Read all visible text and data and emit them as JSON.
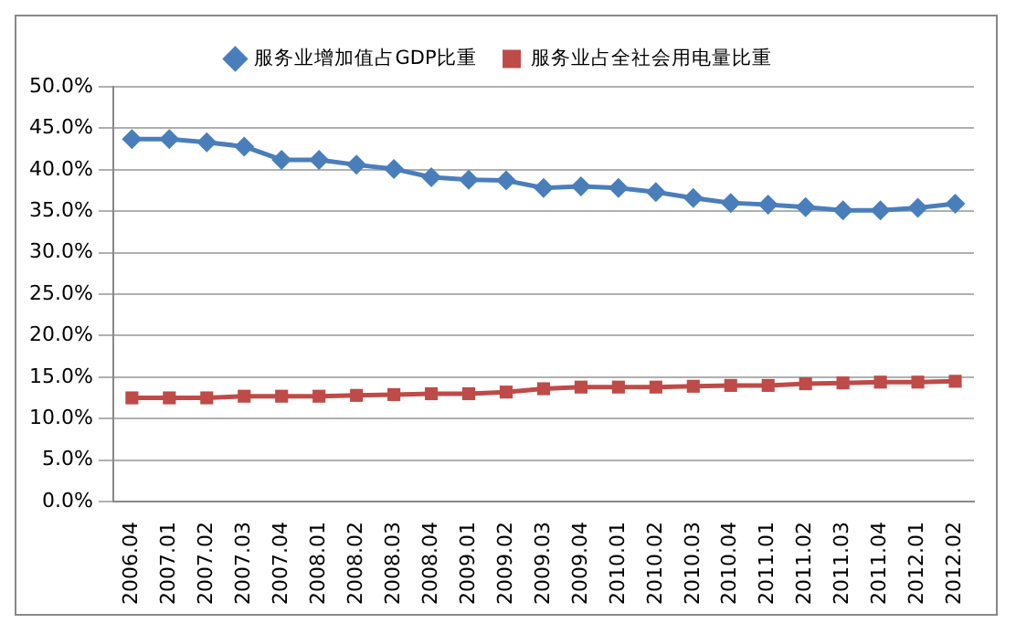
{
  "chart_data": {
    "type": "line",
    "categories": [
      "2006.04",
      "2007.01",
      "2007.02",
      "2007.03",
      "2007.04",
      "2008.01",
      "2008.02",
      "2008.03",
      "2008.04",
      "2009.01",
      "2009.02",
      "2009.03",
      "2009.04",
      "2010.01",
      "2010.02",
      "2010.03",
      "2010.04",
      "2011.01",
      "2011.02",
      "2011.03",
      "2011.04",
      "2012.01",
      "2012.02"
    ],
    "series": [
      {
        "name": "服务业增加值占GDP比重",
        "color": "#4a7ebb",
        "marker": "diamond",
        "values": [
          43.7,
          43.7,
          43.3,
          42.8,
          41.2,
          41.2,
          40.6,
          40.1,
          39.1,
          38.8,
          38.7,
          37.8,
          38.0,
          37.8,
          37.3,
          36.6,
          36.0,
          35.8,
          35.5,
          35.1,
          35.1,
          35.4,
          35.9
        ]
      },
      {
        "name": "服务业占全社会用电量比重",
        "color": "#be4b48",
        "marker": "square",
        "values": [
          12.5,
          12.5,
          12.5,
          12.7,
          12.7,
          12.7,
          12.8,
          12.9,
          13.0,
          13.0,
          13.2,
          13.6,
          13.8,
          13.8,
          13.8,
          13.9,
          14.0,
          14.0,
          14.2,
          14.3,
          14.4,
          14.4,
          14.5
        ]
      }
    ],
    "ylim": [
      0,
      50
    ],
    "yticks": [
      {
        "value": 0,
        "label": "0.0%"
      },
      {
        "value": 5,
        "label": "5.0%"
      },
      {
        "value": 10,
        "label": "10.0%"
      },
      {
        "value": 15,
        "label": "15.0%"
      },
      {
        "value": 20,
        "label": "20.0%"
      },
      {
        "value": 25,
        "label": "25.0%"
      },
      {
        "value": 30,
        "label": "30.0%"
      },
      {
        "value": 35,
        "label": "35.0%"
      },
      {
        "value": 40,
        "label": "40.0%"
      },
      {
        "value": 45,
        "label": "45.0%"
      },
      {
        "value": 50,
        "label": "50.0%"
      }
    ],
    "grid": "y",
    "legend": "top",
    "line_style": "solid"
  }
}
